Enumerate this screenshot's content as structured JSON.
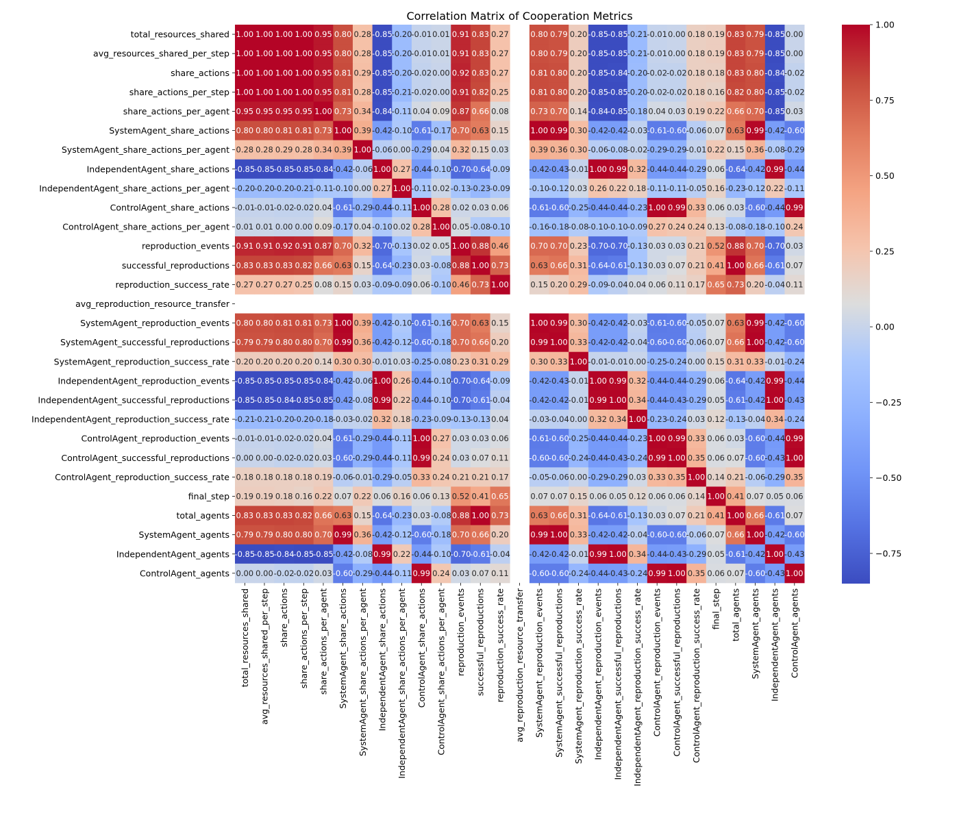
{
  "chart_data": {
    "type": "heatmap",
    "title": "Correlation Matrix of Cooperation Metrics",
    "labels": [
      "total_resources_shared",
      "avg_resources_shared_per_step",
      "share_actions",
      "share_actions_per_step",
      "share_actions_per_agent",
      "SystemAgent_share_actions",
      "SystemAgent_share_actions_per_agent",
      "IndependentAgent_share_actions",
      "IndependentAgent_share_actions_per_agent",
      "ControlAgent_share_actions",
      "ControlAgent_share_actions_per_agent",
      "reproduction_events",
      "successful_reproductions",
      "reproduction_success_rate",
      "avg_reproduction_resource_transfer",
      "SystemAgent_reproduction_events",
      "SystemAgent_successful_reproductions",
      "SystemAgent_reproduction_success_rate",
      "IndependentAgent_reproduction_events",
      "IndependentAgent_successful_reproductions",
      "IndependentAgent_reproduction_success_rate",
      "ControlAgent_reproduction_events",
      "ControlAgent_successful_reproductions",
      "ControlAgent_reproduction_success_rate",
      "final_step",
      "total_agents",
      "SystemAgent_agents",
      "IndependentAgent_agents",
      "ControlAgent_agents"
    ],
    "matrix": [
      [
        1.0,
        1.0,
        1.0,
        1.0,
        0.95,
        0.8,
        0.28,
        -0.85,
        -0.2,
        -0.01,
        0.01,
        0.91,
        0.83,
        0.27,
        null,
        0.8,
        0.79,
        0.2,
        -0.85,
        -0.85,
        -0.21,
        -0.01,
        -0.0,
        0.18,
        0.19,
        0.83,
        0.79,
        -0.85,
        -0.0
      ],
      [
        1.0,
        1.0,
        1.0,
        1.0,
        0.95,
        0.8,
        0.28,
        -0.85,
        -0.2,
        -0.01,
        0.01,
        0.91,
        0.83,
        0.27,
        null,
        0.8,
        0.79,
        0.2,
        -0.85,
        -0.85,
        -0.21,
        -0.01,
        -0.0,
        0.18,
        0.19,
        0.83,
        0.79,
        -0.85,
        -0.0
      ],
      [
        1.0,
        1.0,
        1.0,
        1.0,
        0.95,
        0.81,
        0.29,
        -0.85,
        -0.2,
        -0.02,
        0.0,
        0.92,
        0.83,
        0.27,
        null,
        0.81,
        0.8,
        0.2,
        -0.85,
        -0.84,
        -0.2,
        -0.02,
        -0.02,
        0.18,
        0.18,
        0.83,
        0.8,
        -0.84,
        -0.02
      ],
      [
        1.0,
        1.0,
        1.0,
        1.0,
        0.95,
        0.81,
        0.28,
        -0.85,
        -0.21,
        -0.02,
        0.0,
        0.91,
        0.82,
        0.25,
        null,
        0.81,
        0.8,
        0.2,
        -0.85,
        -0.85,
        -0.2,
        -0.02,
        -0.02,
        0.18,
        0.16,
        0.82,
        0.8,
        -0.85,
        -0.02
      ],
      [
        0.95,
        0.95,
        0.95,
        0.95,
        1.0,
        0.73,
        0.34,
        -0.84,
        -0.11,
        0.04,
        0.09,
        0.87,
        0.66,
        0.08,
        null,
        0.73,
        0.7,
        0.14,
        -0.84,
        -0.85,
        -0.18,
        0.04,
        0.03,
        0.19,
        0.22,
        0.66,
        0.7,
        -0.85,
        0.03
      ],
      [
        0.8,
        0.8,
        0.81,
        0.81,
        0.73,
        1.0,
        0.39,
        -0.42,
        -0.1,
        -0.61,
        -0.17,
        0.7,
        0.63,
        0.15,
        null,
        1.0,
        0.99,
        0.3,
        -0.42,
        -0.42,
        -0.03,
        -0.61,
        -0.6,
        -0.06,
        0.07,
        0.63,
        0.99,
        -0.42,
        -0.6
      ],
      [
        0.28,
        0.28,
        0.29,
        0.28,
        0.34,
        0.39,
        1.0,
        -0.06,
        0.0,
        -0.29,
        0.04,
        0.32,
        0.15,
        0.03,
        null,
        0.39,
        0.36,
        0.3,
        -0.06,
        -0.08,
        -0.02,
        -0.29,
        -0.29,
        -0.01,
        0.22,
        0.15,
        0.36,
        -0.08,
        -0.29
      ],
      [
        -0.85,
        -0.85,
        -0.85,
        -0.85,
        -0.84,
        -0.42,
        -0.06,
        1.0,
        0.27,
        -0.44,
        -0.1,
        -0.7,
        -0.64,
        -0.09,
        null,
        -0.42,
        -0.43,
        -0.01,
        1.0,
        0.99,
        0.32,
        -0.44,
        -0.44,
        -0.29,
        0.06,
        -0.64,
        -0.42,
        0.99,
        -0.44
      ],
      [
        -0.2,
        -0.2,
        -0.2,
        -0.21,
        -0.11,
        -0.1,
        0.0,
        0.27,
        1.0,
        -0.11,
        0.02,
        -0.13,
        -0.23,
        -0.09,
        null,
        -0.1,
        -0.12,
        0.03,
        0.26,
        0.22,
        0.18,
        -0.11,
        -0.11,
        -0.05,
        0.16,
        -0.23,
        -0.12,
        0.22,
        -0.11
      ],
      [
        -0.01,
        -0.01,
        -0.02,
        -0.02,
        0.04,
        -0.61,
        -0.29,
        -0.44,
        -0.11,
        1.0,
        0.28,
        0.02,
        0.03,
        0.06,
        null,
        -0.61,
        -0.6,
        -0.25,
        -0.44,
        -0.44,
        -0.23,
        1.0,
        0.99,
        0.33,
        0.06,
        0.03,
        -0.6,
        -0.44,
        0.99
      ],
      [
        0.01,
        0.01,
        0.0,
        0.0,
        0.09,
        -0.17,
        0.04,
        -0.1,
        0.02,
        0.28,
        1.0,
        0.05,
        -0.08,
        -0.1,
        null,
        -0.16,
        -0.18,
        -0.08,
        -0.1,
        -0.1,
        -0.09,
        0.27,
        0.24,
        0.24,
        0.13,
        -0.08,
        -0.18,
        -0.1,
        0.24
      ],
      [
        0.91,
        0.91,
        0.92,
        0.91,
        0.87,
        0.7,
        0.32,
        -0.7,
        -0.13,
        0.02,
        0.05,
        1.0,
        0.88,
        0.46,
        null,
        0.7,
        0.7,
        0.23,
        -0.7,
        -0.7,
        -0.13,
        0.03,
        0.03,
        0.21,
        0.52,
        0.88,
        0.7,
        -0.7,
        0.03
      ],
      [
        0.83,
        0.83,
        0.83,
        0.82,
        0.66,
        0.63,
        0.15,
        -0.64,
        -0.23,
        0.03,
        -0.08,
        0.88,
        1.0,
        0.73,
        null,
        0.63,
        0.66,
        0.31,
        -0.64,
        -0.61,
        -0.13,
        0.03,
        0.07,
        0.21,
        0.41,
        1.0,
        0.66,
        -0.61,
        0.07
      ],
      [
        0.27,
        0.27,
        0.27,
        0.25,
        0.08,
        0.15,
        0.03,
        -0.09,
        -0.09,
        0.06,
        -0.1,
        0.46,
        0.73,
        1.0,
        null,
        0.15,
        0.2,
        0.29,
        -0.09,
        -0.04,
        0.04,
        0.06,
        0.11,
        0.17,
        0.65,
        0.73,
        0.2,
        -0.04,
        0.11
      ],
      [
        null,
        null,
        null,
        null,
        null,
        null,
        null,
        null,
        null,
        null,
        null,
        null,
        null,
        null,
        null,
        null,
        null,
        null,
        null,
        null,
        null,
        null,
        null,
        null,
        null,
        null,
        null,
        null,
        null
      ],
      [
        0.8,
        0.8,
        0.81,
        0.81,
        0.73,
        1.0,
        0.39,
        -0.42,
        -0.1,
        -0.61,
        -0.16,
        0.7,
        0.63,
        0.15,
        null,
        1.0,
        0.99,
        0.3,
        -0.42,
        -0.42,
        -0.03,
        -0.61,
        -0.6,
        -0.05,
        0.07,
        0.63,
        0.99,
        -0.42,
        -0.6
      ],
      [
        0.79,
        0.79,
        0.8,
        0.8,
        0.7,
        0.99,
        0.36,
        -0.42,
        -0.12,
        -0.6,
        -0.18,
        0.7,
        0.66,
        0.2,
        null,
        0.99,
        1.0,
        0.33,
        -0.42,
        -0.42,
        -0.04,
        -0.6,
        -0.6,
        -0.06,
        0.07,
        0.66,
        1.0,
        -0.42,
        -0.6
      ],
      [
        0.2,
        0.2,
        0.2,
        0.2,
        0.14,
        0.3,
        0.3,
        -0.01,
        0.03,
        -0.25,
        -0.08,
        0.23,
        0.31,
        0.29,
        null,
        0.3,
        0.33,
        1.0,
        -0.01,
        -0.01,
        0.0,
        -0.25,
        -0.24,
        0.0,
        0.15,
        0.31,
        0.33,
        -0.01,
        -0.24
      ],
      [
        -0.85,
        -0.85,
        -0.85,
        -0.85,
        -0.84,
        -0.42,
        -0.06,
        1.0,
        0.26,
        -0.44,
        -0.1,
        -0.7,
        -0.64,
        -0.09,
        null,
        -0.42,
        -0.43,
        -0.01,
        1.0,
        0.99,
        0.32,
        -0.44,
        -0.44,
        -0.29,
        0.06,
        -0.64,
        -0.42,
        0.99,
        -0.44
      ],
      [
        -0.85,
        -0.85,
        -0.84,
        -0.85,
        -0.85,
        -0.42,
        -0.08,
        0.99,
        0.22,
        -0.44,
        -0.1,
        -0.7,
        -0.61,
        -0.04,
        null,
        -0.42,
        -0.42,
        -0.01,
        0.99,
        1.0,
        0.34,
        -0.44,
        -0.43,
        -0.29,
        0.05,
        -0.61,
        -0.42,
        1.0,
        -0.43
      ],
      [
        -0.21,
        -0.21,
        -0.2,
        -0.2,
        -0.18,
        -0.03,
        -0.02,
        0.32,
        0.18,
        -0.23,
        -0.09,
        -0.13,
        -0.13,
        0.04,
        null,
        -0.03,
        -0.04,
        0.0,
        0.32,
        0.34,
        1.0,
        -0.23,
        -0.24,
        0.03,
        0.12,
        -0.13,
        -0.04,
        0.34,
        -0.24
      ],
      [
        -0.01,
        -0.01,
        -0.02,
        -0.02,
        0.04,
        -0.61,
        -0.29,
        -0.44,
        -0.11,
        1.0,
        0.27,
        0.03,
        0.03,
        0.06,
        null,
        -0.61,
        -0.6,
        -0.25,
        -0.44,
        -0.44,
        -0.23,
        1.0,
        0.99,
        0.33,
        0.06,
        0.03,
        -0.6,
        -0.44,
        0.99
      ],
      [
        -0.0,
        -0.0,
        -0.02,
        -0.02,
        0.03,
        -0.6,
        -0.29,
        -0.44,
        -0.11,
        0.99,
        0.24,
        0.03,
        0.07,
        0.11,
        null,
        -0.6,
        -0.6,
        -0.24,
        -0.44,
        -0.43,
        -0.24,
        0.99,
        1.0,
        0.35,
        0.06,
        0.07,
        -0.6,
        -0.43,
        1.0
      ],
      [
        0.18,
        0.18,
        0.18,
        0.18,
        0.19,
        -0.06,
        -0.01,
        -0.29,
        -0.05,
        0.33,
        0.24,
        0.21,
        0.21,
        0.17,
        null,
        -0.05,
        -0.06,
        0.0,
        -0.29,
        -0.29,
        0.03,
        0.33,
        0.35,
        1.0,
        0.14,
        0.21,
        -0.06,
        -0.29,
        0.35
      ],
      [
        0.19,
        0.19,
        0.18,
        0.16,
        0.22,
        0.07,
        0.22,
        0.06,
        0.16,
        0.06,
        0.13,
        0.52,
        0.41,
        0.65,
        null,
        0.07,
        0.07,
        0.15,
        0.06,
        0.05,
        0.12,
        0.06,
        0.06,
        0.14,
        1.0,
        0.41,
        0.07,
        0.05,
        0.06
      ],
      [
        0.83,
        0.83,
        0.83,
        0.82,
        0.66,
        0.63,
        0.15,
        -0.64,
        -0.23,
        0.03,
        -0.08,
        0.88,
        1.0,
        0.73,
        null,
        0.63,
        0.66,
        0.31,
        -0.64,
        -0.61,
        -0.13,
        0.03,
        0.07,
        0.21,
        0.41,
        1.0,
        0.66,
        -0.61,
        0.07
      ],
      [
        0.79,
        0.79,
        0.8,
        0.8,
        0.7,
        0.99,
        0.36,
        -0.42,
        -0.12,
        -0.6,
        -0.18,
        0.7,
        0.66,
        0.2,
        null,
        0.99,
        1.0,
        0.33,
        -0.42,
        -0.42,
        -0.04,
        -0.6,
        -0.6,
        -0.06,
        0.07,
        0.66,
        1.0,
        -0.42,
        -0.6
      ],
      [
        -0.85,
        -0.85,
        -0.84,
        -0.85,
        -0.85,
        -0.42,
        -0.08,
        0.99,
        0.22,
        -0.44,
        -0.1,
        -0.7,
        -0.61,
        -0.04,
        null,
        -0.42,
        -0.42,
        -0.01,
        0.99,
        1.0,
        0.34,
        -0.44,
        -0.43,
        -0.29,
        0.05,
        -0.61,
        -0.42,
        1.0,
        -0.43
      ],
      [
        -0.0,
        -0.0,
        -0.02,
        -0.02,
        0.03,
        -0.6,
        -0.29,
        -0.44,
        -0.11,
        0.99,
        0.24,
        0.03,
        0.07,
        0.11,
        null,
        -0.6,
        -0.6,
        -0.24,
        -0.44,
        -0.43,
        -0.24,
        0.99,
        1.0,
        0.35,
        0.06,
        0.07,
        -0.6,
        -0.43,
        1.0
      ]
    ],
    "colormap": "coolwarm",
    "vmin": -0.85,
    "vmax": 1.0,
    "annotations": true,
    "colorbar": {
      "ticks": [
        1.0,
        0.75,
        0.5,
        0.25,
        0.0,
        -0.25,
        -0.5,
        -0.75
      ],
      "tick_labels": [
        "1.00",
        "0.75",
        "0.50",
        "0.25",
        "0.00",
        "−0.25",
        "−0.50",
        "−0.75"
      ],
      "placement": "right"
    },
    "grid": false
  }
}
